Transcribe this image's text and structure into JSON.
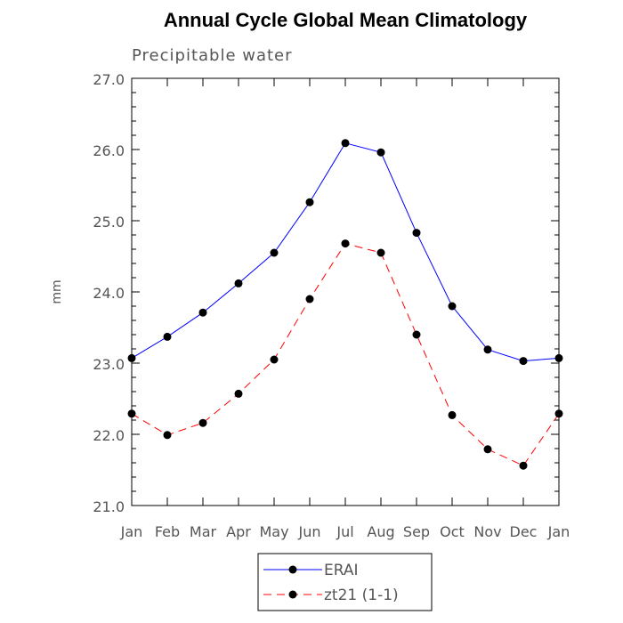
{
  "chart_data": {
    "type": "line",
    "title": "Annual Cycle Global Mean Climatology",
    "subtitle": "Precipitable water",
    "ylabel": "mm",
    "xlabel": "",
    "categories": [
      "Jan",
      "Feb",
      "Mar",
      "Apr",
      "May",
      "Jun",
      "Jul",
      "Aug",
      "Sep",
      "Oct",
      "Nov",
      "Dec",
      "Jan"
    ],
    "ylim": [
      21.0,
      27.0
    ],
    "yticks": [
      "21.0",
      "22.0",
      "23.0",
      "24.0",
      "25.0",
      "26.0",
      "27.0"
    ],
    "series": [
      {
        "name": "ERAI",
        "color": "#0000ff",
        "dash": "solid",
        "values": [
          23.07,
          23.37,
          23.71,
          24.12,
          24.55,
          25.26,
          26.09,
          25.96,
          24.83,
          23.8,
          23.19,
          23.03,
          23.07
        ]
      },
      {
        "name": "zt21 (1-1)",
        "color": "#ff0000",
        "dash": "dashed",
        "values": [
          22.29,
          21.99,
          22.16,
          22.57,
          23.05,
          23.9,
          24.68,
          24.55,
          23.4,
          22.27,
          21.79,
          21.56,
          22.29
        ]
      }
    ],
    "legend_position": "bottom-center",
    "grid": false
  }
}
